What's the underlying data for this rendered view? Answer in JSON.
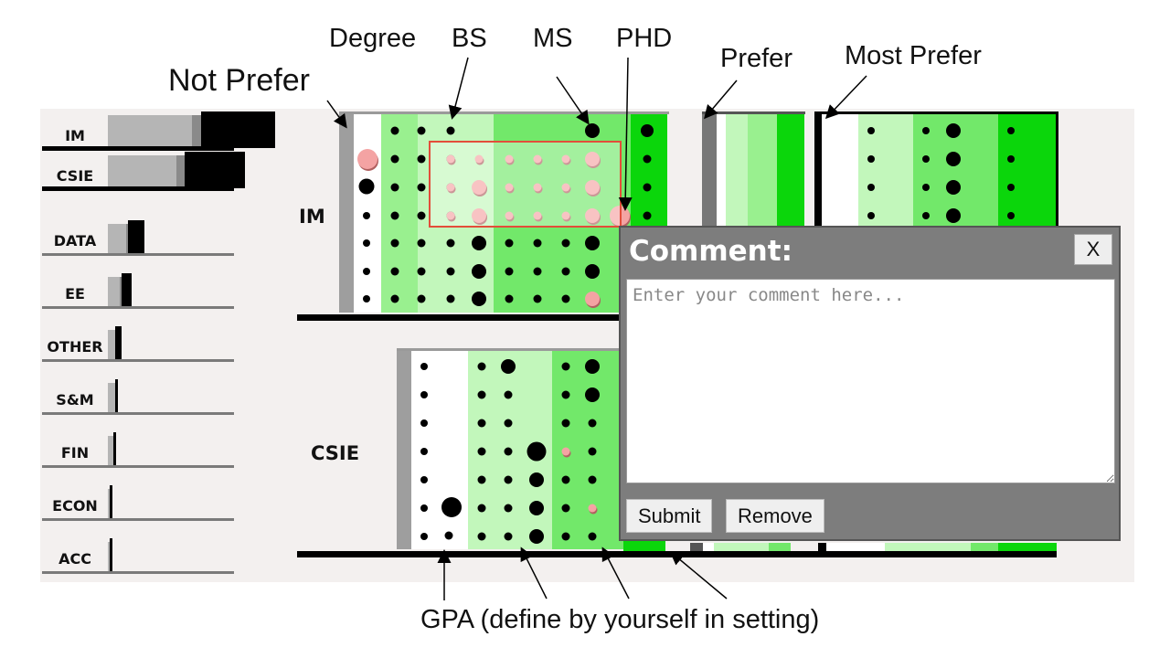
{
  "annotations": {
    "degree": "Degree",
    "bs": "BS",
    "ms": "MS",
    "phd": "PHD",
    "prefer": "Prefer",
    "most_prefer": "Most Prefer",
    "not_prefer": "Not Prefer",
    "gpa_note": "GPA  (define by yourself in setting)"
  },
  "sidebar": {
    "items": [
      {
        "label": "IM",
        "selected": true,
        "level": 1.0
      },
      {
        "label": "CSIE",
        "selected": true,
        "level": 0.82
      },
      {
        "label": "DATA",
        "selected": false,
        "level": 0.22
      },
      {
        "label": "EE",
        "selected": false,
        "level": 0.14
      },
      {
        "label": "OTHER",
        "selected": false,
        "level": 0.08
      },
      {
        "label": "S&M",
        "selected": false,
        "level": 0.06
      },
      {
        "label": "FIN",
        "selected": false,
        "level": 0.05
      },
      {
        "label": "ECON",
        "selected": false,
        "level": 0.03
      },
      {
        "label": "ACC",
        "selected": false,
        "level": 0.03
      }
    ]
  },
  "rows": [
    {
      "label": "IM"
    },
    {
      "label": "CSIE"
    }
  ],
  "colors": {
    "zone_white": "#ffffff",
    "zone_lightest": "#c2f7bb",
    "zone_light": "#99f08f",
    "zone_mid": "#72e86a",
    "zone_strong": "#0bd60b",
    "zone_gray": "#9e9e9e",
    "selection": "#e34d3a",
    "highlight_dot": "#f4a3a3"
  },
  "comment": {
    "title": "Comment:",
    "close_label": "X",
    "placeholder": "Enter your comment here...",
    "submit_label": "Submit",
    "remove_label": "Remove"
  }
}
